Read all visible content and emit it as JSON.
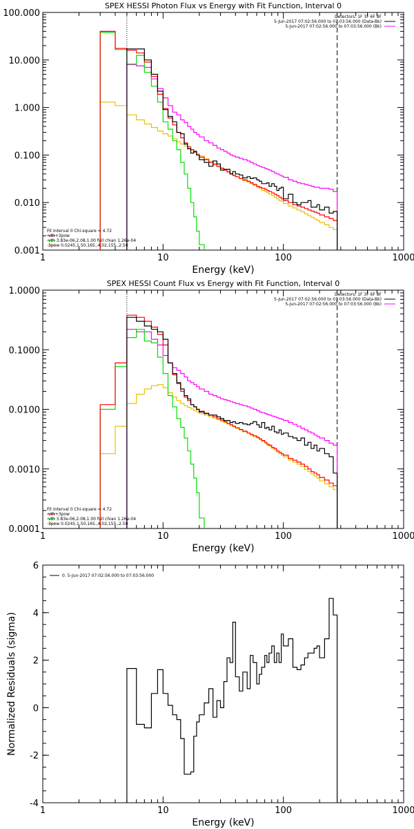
{
  "colors": {
    "data": "#000000",
    "total": "#ff0000",
    "vth": "#00dd00",
    "3pow": "#e8c000",
    "background": "#ff00ff"
  },
  "chart_data": [
    {
      "type": "line",
      "title": "SPEX HESSI Photon Flux vs Energy with Fit Function, Interval 0",
      "xlabel": "Energy (keV)",
      "ylabel": "",
      "xscale": "log",
      "yscale": "log",
      "xlim": [
        1,
        1000
      ],
      "ylim": [
        0.001,
        100
      ],
      "xticks": [
        "1",
        "10",
        "100",
        "1000"
      ],
      "yticks": [
        "0.001",
        "0.010",
        "0.100",
        "1.000",
        "10.000",
        "100.000"
      ],
      "vlines": {
        "dotted": 5,
        "dashed": 280
      },
      "legend_top": [
        "Detectors: 1F 3F 6F 8F",
        "5-Jun-2017 07:02:56.000 to 07:03:56.000 (Data-Bk)",
        "5-Jun-2017 07:02:56.000 to 07:03:56.000 (Bk)"
      ],
      "legend_bottom": [
        "Fit Interval 0   Chi-square = 4.72",
        "vth+3pow",
        "vth 3.83e-06,2.08,1.00  full chian 1.26e-04",
        "3pow 0.0245,1.50,165.,4.02,155.,2.50"
      ],
      "edges": [
        3,
        4,
        5,
        6,
        7,
        8,
        9,
        10,
        11,
        12,
        13,
        14,
        15,
        16,
        17,
        18,
        19,
        20,
        22,
        24,
        26,
        28,
        30,
        32,
        34,
        36,
        38,
        40,
        43,
        46,
        50,
        53,
        56,
        60,
        63,
        66,
        70,
        73,
        76,
        80,
        84,
        88,
        92,
        96,
        100,
        110,
        120,
        130,
        140,
        150,
        160,
        170,
        180,
        190,
        200,
        220,
        240,
        260,
        280
      ],
      "series": [
        {
          "name": "5-Jun-2017 07:02:56.000 to 07:03:56.000 (Data-Bk)",
          "key": "data",
          "values": [
            null,
            null,
            17,
            17,
            10,
            5,
            2.2,
            0.9,
            0.65,
            0.5,
            0.3,
            0.28,
            0.17,
            0.135,
            0.11,
            0.12,
            0.1,
            0.08,
            0.07,
            0.058,
            0.075,
            0.065,
            0.048,
            0.05,
            0.05,
            0.04,
            0.045,
            0.04,
            0.038,
            0.033,
            0.035,
            0.032,
            0.033,
            0.03,
            0.028,
            0.025,
            0.025,
            0.026,
            0.022,
            0.025,
            0.022,
            0.018,
            0.02,
            0.021,
            0.012,
            0.015,
            0.01,
            0.009,
            0.01,
            0.01,
            0.011,
            0.008,
            0.008,
            0.009,
            0.007,
            0.008,
            0.006,
            0.0065
          ]
        },
        {
          "name": "vth+3pow",
          "key": "total",
          "values": [
            40,
            17.5,
            16,
            14,
            9,
            4.5,
            1.9,
            0.95,
            0.6,
            0.43,
            0.3,
            0.23,
            0.18,
            0.15,
            0.13,
            0.115,
            0.1,
            0.09,
            0.08,
            0.07,
            0.063,
            0.057,
            0.052,
            0.048,
            0.044,
            0.04,
            0.037,
            0.035,
            0.032,
            0.03,
            0.028,
            0.026,
            0.024,
            0.022,
            0.021,
            0.02,
            0.019,
            0.018,
            0.017,
            0.016,
            0.015,
            0.014,
            0.013,
            0.012,
            0.011,
            0.01,
            0.009,
            0.0085,
            0.008,
            0.0075,
            0.007,
            0.0066,
            0.0063,
            0.006,
            0.0055,
            0.005,
            0.0046,
            0.0042
          ]
        },
        {
          "name": "vth 3.83e-06,2.08,1.00  full chian 1.26e-04",
          "key": "vth",
          "values": [
            38,
            16.5,
            8.2,
            12.5,
            5.5,
            2.8,
            1.3,
            0.5,
            0.35,
            0.2,
            0.13,
            0.07,
            0.04,
            0.02,
            0.01,
            0.005,
            0.0025,
            0.0013,
            null,
            null,
            null,
            null,
            null,
            null,
            null,
            null,
            null,
            null,
            null,
            null,
            null,
            null,
            null,
            null,
            null,
            null,
            null,
            null,
            null,
            null,
            null,
            null,
            null,
            null,
            null,
            null,
            null,
            null,
            null,
            null,
            null,
            null,
            null,
            null,
            null,
            null,
            null,
            null
          ]
        },
        {
          "name": "3pow 0.0245,1.50,165.,4.02,155.,2.50",
          "key": "3pow",
          "values": [
            1.3,
            1.1,
            0.7,
            0.55,
            0.45,
            0.38,
            0.32,
            0.28,
            0.25,
            0.22,
            0.19,
            0.17,
            0.155,
            0.14,
            0.128,
            0.117,
            0.107,
            0.095,
            0.083,
            0.074,
            0.066,
            0.06,
            0.054,
            0.049,
            0.045,
            0.041,
            0.038,
            0.035,
            0.032,
            0.029,
            0.027,
            0.025,
            0.023,
            0.021,
            0.02,
            0.018,
            0.017,
            0.016,
            0.015,
            0.014,
            0.013,
            0.012,
            0.011,
            0.0105,
            0.0095,
            0.0085,
            0.0077,
            0.007,
            0.0064,
            0.0058,
            0.0053,
            0.0049,
            0.0045,
            0.0042,
            0.0038,
            0.0034,
            0.003,
            0.0027
          ]
        },
        {
          "name": "5-Jun-2017 07:02:56.000 to 07:03:56.000 (Bk)",
          "key": "background",
          "values": [
            null,
            null,
            8,
            7.5,
            7,
            4,
            2.5,
            1.6,
            1.1,
            0.8,
            0.7,
            0.55,
            0.48,
            0.4,
            0.35,
            0.3,
            0.27,
            0.24,
            0.2,
            0.18,
            0.16,
            0.14,
            0.13,
            0.12,
            0.11,
            0.1,
            0.095,
            0.09,
            0.085,
            0.08,
            0.075,
            0.07,
            0.065,
            0.06,
            0.058,
            0.055,
            0.052,
            0.05,
            0.048,
            0.045,
            0.042,
            0.04,
            0.038,
            0.036,
            0.034,
            0.03,
            0.028,
            0.026,
            0.025,
            0.024,
            0.023,
            0.022,
            0.021,
            0.021,
            0.02,
            0.02,
            0.019,
            0.017
          ]
        }
      ]
    },
    {
      "type": "line",
      "title": "SPEX HESSI Count Flux vs Energy with Fit Function, Interval 0",
      "xlabel": "Energy (keV)",
      "ylabel": "",
      "xscale": "log",
      "yscale": "log",
      "xlim": [
        1,
        1000
      ],
      "ylim": [
        0.0001,
        1
      ],
      "xticks": [
        "1",
        "10",
        "100",
        "1000"
      ],
      "yticks": [
        "0.0001",
        "0.0010",
        "0.0100",
        "0.1000",
        "1.0000"
      ],
      "vlines": {
        "dotted": 5,
        "dashed": 280
      },
      "legend_top": [
        "Detectors: 1F 3F 6F 8F",
        "5-Jun-2017 07:02:56.000 to 07:03:56.000 (Data-Bk)",
        "5-Jun-2017 07:02:56.000 to 07:03:56.000 (Bk)"
      ],
      "legend_bottom": [
        "Fit Interval 0   Chi-square = 4.72",
        "vth+3pow",
        "vth 3.83e-06,2.08,1.00  full chian 1.26e-04",
        "3pow 0.0245,1.50,165.,4.02,155.,2.50"
      ],
      "edges": [
        3,
        4,
        5,
        6,
        7,
        8,
        9,
        10,
        11,
        12,
        13,
        14,
        15,
        16,
        17,
        18,
        19,
        20,
        22,
        24,
        26,
        28,
        30,
        32,
        34,
        36,
        38,
        40,
        43,
        46,
        50,
        53,
        56,
        60,
        63,
        66,
        70,
        73,
        76,
        80,
        84,
        88,
        92,
        96,
        100,
        110,
        120,
        130,
        140,
        150,
        160,
        170,
        180,
        190,
        200,
        220,
        240,
        260,
        280
      ],
      "series": [
        {
          "name": "5-Jun-2017 07:02:56.000 to 07:03:56.000 (Data-Bk)",
          "key": "data",
          "values": [
            null,
            null,
            0.35,
            0.3,
            0.25,
            0.22,
            0.2,
            0.15,
            0.06,
            0.04,
            0.028,
            0.022,
            0.017,
            0.015,
            0.012,
            0.011,
            0.01,
            0.009,
            0.0085,
            0.008,
            0.008,
            0.0075,
            0.007,
            0.0065,
            0.0065,
            0.006,
            0.0062,
            0.0058,
            0.006,
            0.0057,
            0.0055,
            0.0058,
            0.0062,
            0.0055,
            0.005,
            0.006,
            0.0048,
            0.005,
            0.0045,
            0.0052,
            0.0042,
            0.004,
            0.0045,
            0.0038,
            0.004,
            0.0035,
            0.0033,
            0.003,
            0.0033,
            0.0025,
            0.0028,
            0.0022,
            0.0025,
            0.002,
            0.0022,
            0.0018,
            0.0016,
            0.00085
          ]
        },
        {
          "name": "vth+3pow",
          "key": "total",
          "values": [
            0.012,
            0.06,
            0.38,
            0.35,
            0.3,
            0.24,
            0.18,
            0.12,
            0.06,
            0.038,
            0.027,
            0.02,
            0.016,
            0.014,
            0.012,
            0.011,
            0.01,
            0.0093,
            0.0086,
            0.008,
            0.0075,
            0.007,
            0.0066,
            0.0062,
            0.0058,
            0.0055,
            0.0052,
            0.0049,
            0.0046,
            0.0043,
            0.004,
            0.0038,
            0.0036,
            0.0034,
            0.0032,
            0.003,
            0.0028,
            0.0026,
            0.0025,
            0.0023,
            0.0022,
            0.002,
            0.0019,
            0.0018,
            0.0017,
            0.0015,
            0.0014,
            0.0013,
            0.0012,
            0.0011,
            0.001,
            0.0009,
            0.00085,
            0.0008,
            0.00072,
            0.00065,
            0.00058,
            0.00052
          ]
        },
        {
          "name": "vth 3.83e-06,2.08,1.00  full chian 1.26e-04",
          "key": "vth",
          "values": [
            0.01,
            0.052,
            0.16,
            0.22,
            0.14,
            0.13,
            0.075,
            0.04,
            0.017,
            0.011,
            0.007,
            0.005,
            0.0033,
            0.002,
            0.0012,
            0.0007,
            0.0004,
            0.00015,
            null,
            null,
            null,
            null,
            null,
            null,
            null,
            null,
            null,
            null,
            null,
            null,
            null,
            null,
            null,
            null,
            null,
            null,
            null,
            null,
            null,
            null,
            null,
            null,
            null,
            null,
            null,
            null,
            null,
            null,
            null,
            null,
            null,
            null,
            null,
            null,
            null,
            null,
            null,
            null
          ]
        },
        {
          "name": "3pow 0.0245,1.50,165.,4.02,155.,2.50",
          "key": "3pow",
          "values": [
            0.0018,
            0.0052,
            0.0125,
            0.018,
            0.022,
            0.025,
            0.026,
            0.023,
            0.019,
            0.016,
            0.014,
            0.0125,
            0.0115,
            0.0108,
            0.0101,
            0.0095,
            0.009,
            0.0085,
            0.008,
            0.0075,
            0.0071,
            0.0067,
            0.0063,
            0.006,
            0.0057,
            0.0054,
            0.0051,
            0.0048,
            0.0045,
            0.0042,
            0.004,
            0.0037,
            0.0035,
            0.0033,
            0.0031,
            0.0029,
            0.0027,
            0.0025,
            0.0024,
            0.0022,
            0.0021,
            0.0019,
            0.0018,
            0.0017,
            0.0016,
            0.0014,
            0.0013,
            0.0012,
            0.0011,
            0.00098,
            0.0009,
            0.00082,
            0.00076,
            0.0007,
            0.00063,
            0.00056,
            0.0005,
            0.00045
          ]
        },
        {
          "name": "5-Jun-2017 07:02:56.000 to 07:03:56.000 (Bk)",
          "key": "background",
          "values": [
            null,
            null,
            0.22,
            0.2,
            0.2,
            0.15,
            0.12,
            0.08,
            0.06,
            0.05,
            0.045,
            0.04,
            0.035,
            0.03,
            0.028,
            0.026,
            0.024,
            0.022,
            0.02,
            0.018,
            0.017,
            0.016,
            0.015,
            0.0145,
            0.014,
            0.0135,
            0.013,
            0.0125,
            0.012,
            0.0115,
            0.011,
            0.0105,
            0.01,
            0.0095,
            0.009,
            0.0088,
            0.0085,
            0.0082,
            0.008,
            0.0077,
            0.0075,
            0.0072,
            0.007,
            0.0068,
            0.0065,
            0.006,
            0.0056,
            0.0052,
            0.0048,
            0.0045,
            0.0042,
            0.004,
            0.0037,
            0.0035,
            0.0033,
            0.003,
            0.0027,
            0.0025
          ]
        }
      ]
    },
    {
      "type": "line",
      "title": "",
      "xlabel": "Energy (keV)",
      "ylabel": "Normalized Residuals (sigma)",
      "xscale": "log",
      "yscale": "linear",
      "xlim": [
        1,
        1000
      ],
      "ylim": [
        -4,
        6
      ],
      "xticks": [
        "1",
        "10",
        "100",
        "1000"
      ],
      "yticks": [
        "-4",
        "-2",
        "0",
        "2",
        "4",
        "6"
      ],
      "legend_top": [
        "0. 5-Jun-2017 07:02:56.000 to 07:03:56.000"
      ],
      "edges": [
        5,
        6,
        7,
        8,
        9,
        10,
        11,
        12,
        13,
        14,
        15,
        16,
        17,
        18,
        19,
        20,
        22,
        24,
        26,
        28,
        30,
        32,
        34,
        36,
        38,
        40,
        43,
        46,
        50,
        53,
        56,
        60,
        63,
        66,
        70,
        73,
        76,
        80,
        84,
        88,
        92,
        96,
        100,
        110,
        120,
        130,
        140,
        150,
        160,
        170,
        180,
        190,
        200,
        220,
        240,
        260,
        280
      ],
      "series": [
        {
          "name": "0. 5-Jun-2017 07:02:56.000 to 07:03:56.000",
          "key": "data",
          "values": [
            1.65,
            -0.7,
            -0.85,
            0.6,
            1.6,
            0.6,
            0.1,
            -0.3,
            -0.5,
            -1.3,
            -2.8,
            -2.8,
            -2.7,
            -1.2,
            -0.6,
            -0.3,
            0.2,
            0.8,
            -0.4,
            0.3,
            0.0,
            1.1,
            2.1,
            1.9,
            3.6,
            1.3,
            0.7,
            1.5,
            0.8,
            2.2,
            1.9,
            1.0,
            1.4,
            1.7,
            2.2,
            1.9,
            2.3,
            2.6,
            1.9,
            2.3,
            1.9,
            3.1,
            2.6,
            2.9,
            1.7,
            1.6,
            1.8,
            2.1,
            2.3,
            2.3,
            2.5,
            2.6,
            2.1,
            2.9,
            4.6,
            3.9
          ]
        }
      ]
    }
  ]
}
